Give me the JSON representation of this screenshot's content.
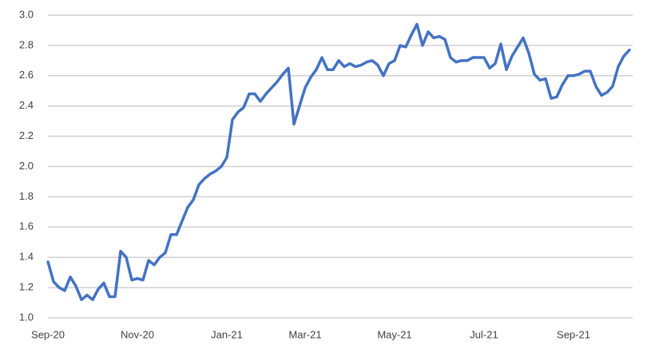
{
  "chart_data": {
    "type": "line",
    "categories": [
      "Sep-20",
      null,
      null,
      null,
      null,
      null,
      null,
      null,
      null,
      null,
      null,
      null,
      null,
      null,
      null,
      null,
      "Nov-20",
      null,
      null,
      null,
      null,
      null,
      null,
      null,
      null,
      null,
      null,
      null,
      null,
      null,
      null,
      null,
      "Jan-21",
      null,
      null,
      null,
      null,
      null,
      null,
      null,
      null,
      null,
      null,
      null,
      null,
      null,
      "Mar-21",
      null,
      null,
      null,
      null,
      null,
      null,
      null,
      null,
      null,
      null,
      null,
      null,
      null,
      null,
      null,
      "May-21",
      null,
      null,
      null,
      null,
      null,
      null,
      null,
      null,
      null,
      null,
      null,
      null,
      null,
      null,
      null,
      "Jul-21",
      null,
      null,
      null,
      null,
      null,
      null,
      null,
      null,
      null,
      null,
      null,
      null,
      null,
      null,
      null,
      "Sep-21",
      null,
      null,
      null,
      null,
      null,
      null,
      null,
      null,
      null,
      null
    ],
    "series": [
      {
        "color": "#4472c4",
        "values": [
          1.37,
          1.24,
          1.2,
          1.18,
          1.27,
          1.21,
          1.12,
          1.15,
          1.12,
          1.19,
          1.23,
          1.14,
          1.14,
          1.44,
          1.4,
          1.25,
          1.26,
          1.25,
          1.38,
          1.35,
          1.4,
          1.43,
          1.55,
          1.55,
          1.64,
          1.73,
          1.78,
          1.88,
          1.92,
          1.95,
          1.97,
          2.0,
          2.06,
          2.31,
          2.36,
          2.39,
          2.48,
          2.48,
          2.43,
          2.48,
          2.52,
          2.56,
          2.61,
          2.65,
          2.28,
          2.4,
          2.52,
          2.59,
          2.64,
          2.72,
          2.64,
          2.64,
          2.7,
          2.66,
          2.68,
          2.66,
          2.67,
          2.69,
          2.7,
          2.67,
          2.6,
          2.68,
          2.7,
          2.8,
          2.79,
          2.87,
          2.94,
          2.8,
          2.89,
          2.85,
          2.86,
          2.84,
          2.72,
          2.69,
          2.7,
          2.7,
          2.72,
          2.72,
          2.72,
          2.65,
          2.68,
          2.81,
          2.64,
          2.73,
          2.79,
          2.85,
          2.75,
          2.61,
          2.57,
          2.58,
          2.45,
          2.46,
          2.54,
          2.6,
          2.6,
          2.61,
          2.63,
          2.63,
          2.53,
          2.47,
          2.49,
          2.53,
          2.66,
          2.73,
          2.77
        ]
      }
    ],
    "ylim": [
      1,
      3
    ],
    "yticks": [
      {
        "value": 1,
        "label": "1.0"
      },
      1.2,
      1.4,
      1.6,
      1.8,
      {
        "value": 2,
        "label": "2.0"
      },
      2.2,
      2.4,
      2.6,
      2.8,
      {
        "value": 3,
        "label": "3.0"
      }
    ],
    "grid": true
  }
}
